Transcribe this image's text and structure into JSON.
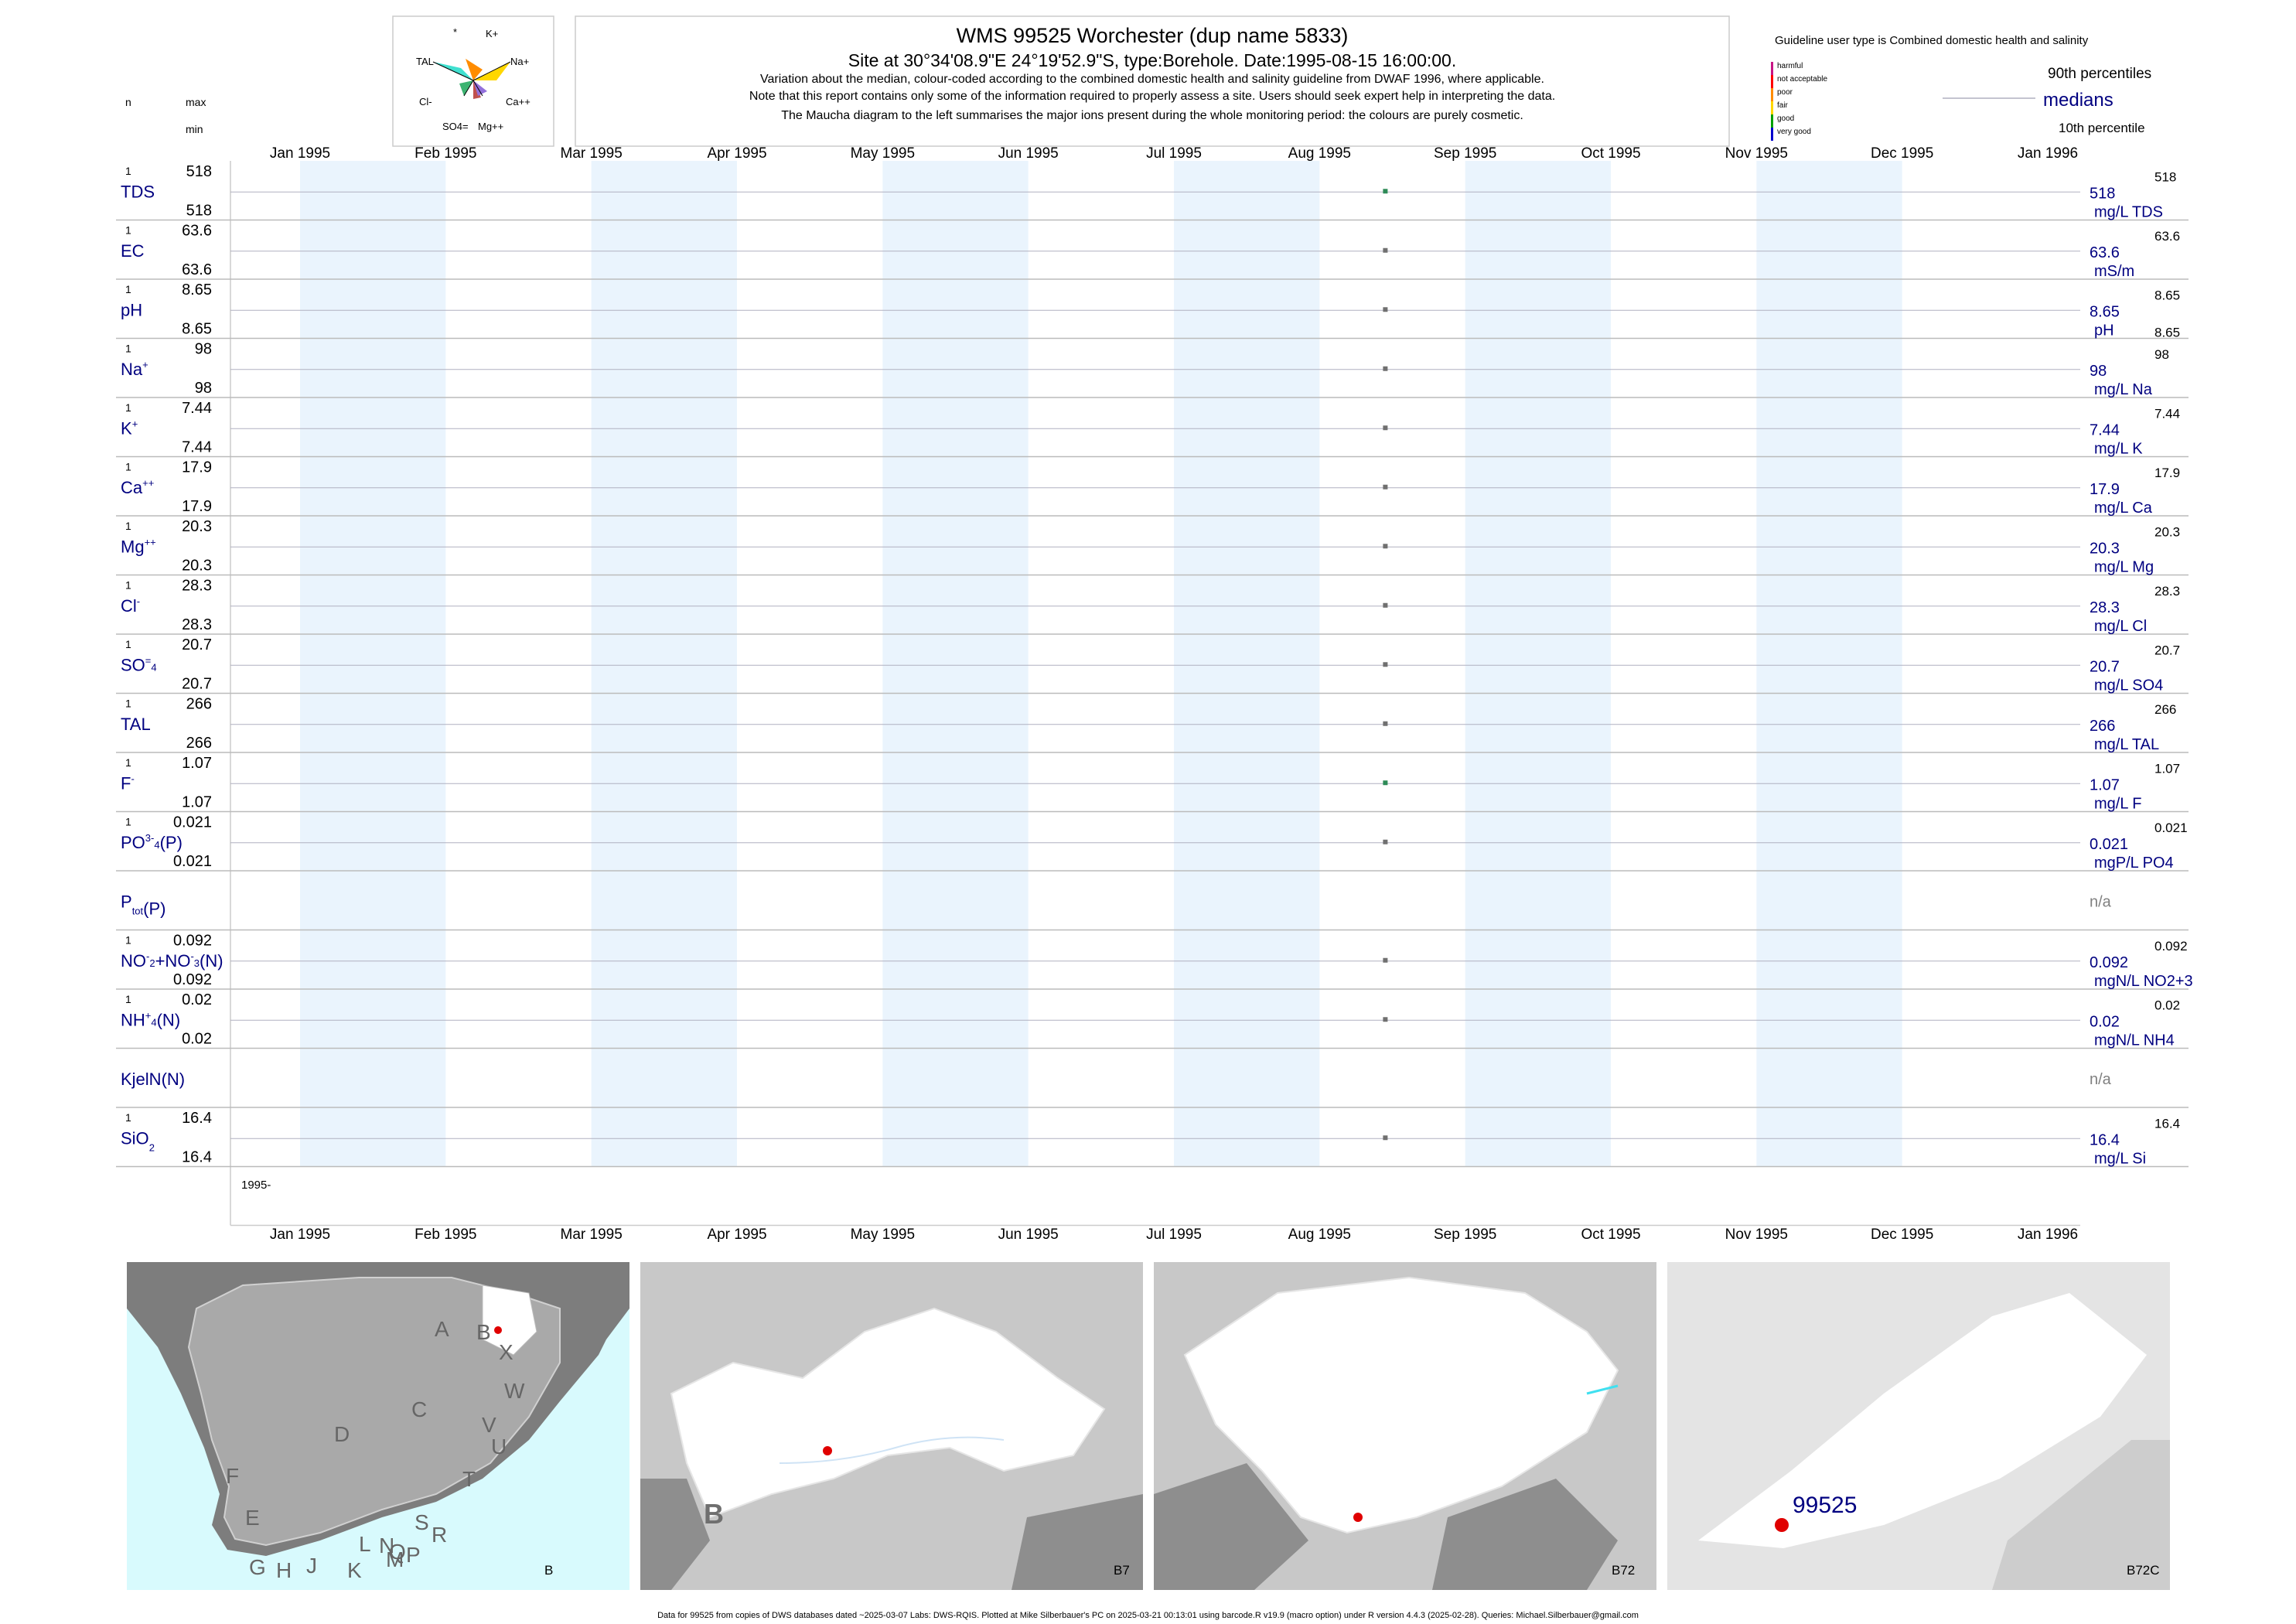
{
  "title": "WMS 99525  Worchester (dup name 5833)",
  "subtitle": "Site at 30°34'08.9\"E 24°19'52.9\"S, type:Borehole. Date:1995-08-15 16:00:00.",
  "notes": [
    "Variation about the median,  colour-coded according to the combined domestic health and salinity guideline from DWAF 1996, where applicable.",
    "Note that this report contains only some of the information required to properly assess a site. Users should seek expert help in interpreting the data.",
    "The Maucha diagram to the left summarises the major ions present during the whole monitoring period: the colours are purely cosmetic."
  ],
  "maucha": {
    "labels": [
      "*",
      "K+",
      "TAL",
      "Na+",
      "Cl-",
      "Ca++",
      "SO4=",
      "Mg++"
    ]
  },
  "header_left": {
    "n": "n",
    "max": "max",
    "min": "min"
  },
  "legend": {
    "guideline_title": "Guideline user type is Combined domestic health and salinity",
    "classes": [
      {
        "label": "harmful",
        "color": "#c71585"
      },
      {
        "label": "not acceptable",
        "color": "#ff0000"
      },
      {
        "label": "poor",
        "color": "#ff8c00"
      },
      {
        "label": "fair",
        "color": "#ffd700"
      },
      {
        "label": "good",
        "color": "#00a000"
      },
      {
        "label": "very good",
        "color": "#0000cd"
      }
    ],
    "p90": "90th percentiles",
    "medians": "medians",
    "p10": "10th percentile"
  },
  "months": [
    "Jan 1995",
    "Feb 1995",
    "Mar 1995",
    "Apr 1995",
    "May 1995",
    "Jun 1995",
    "Jul 1995",
    "Aug 1995",
    "Sep 1995",
    "Oct 1995",
    "Nov 1995",
    "Dec 1995",
    "Jan 1996"
  ],
  "year_label": "1995-",
  "colors": {
    "label_blue": "#000080",
    "band": "#eaf4fd",
    "marker": "#707070",
    "marker_green": "#2e8b57"
  },
  "chart_data": {
    "type": "scatter",
    "sample_date": "1995-08-15",
    "series": [
      {
        "name": "TDS",
        "n": "1",
        "max": "518",
        "min": "518",
        "median": "518",
        "p90": "518",
        "unit": "mg/L TDS",
        "value": 518
      },
      {
        "name": "EC",
        "n": "1",
        "max": "63.6",
        "min": "63.6",
        "median": "63.6",
        "p90": "63.6",
        "unit": "mS/m",
        "value": 63.6
      },
      {
        "name": "pH",
        "n": "1",
        "max": "8.65",
        "min": "8.65",
        "median": "8.65",
        "p90": "8.65",
        "p10": "8.65",
        "unit": "pH",
        "value": 8.65
      },
      {
        "name": "Na+",
        "n": "1",
        "max": "98",
        "min": "98",
        "median": "98",
        "p90": "98",
        "unit": "mg/L Na",
        "value": 98
      },
      {
        "name": "K+",
        "n": "1",
        "max": "7.44",
        "min": "7.44",
        "median": "7.44",
        "p90": "7.44",
        "unit": "mg/L K",
        "value": 7.44
      },
      {
        "name": "Ca++",
        "n": "1",
        "max": "17.9",
        "min": "17.9",
        "median": "17.9",
        "p90": "17.9",
        "unit": "mg/L Ca",
        "value": 17.9
      },
      {
        "name": "Mg++",
        "n": "1",
        "max": "20.3",
        "min": "20.3",
        "median": "20.3",
        "p90": "20.3",
        "unit": "mg/L Mg",
        "value": 20.3
      },
      {
        "name": "Cl-",
        "n": "1",
        "max": "28.3",
        "min": "28.3",
        "median": "28.3",
        "p90": "28.3",
        "unit": "mg/L Cl",
        "value": 28.3
      },
      {
        "name": "SO4=",
        "n": "1",
        "max": "20.7",
        "min": "20.7",
        "median": "20.7",
        "p90": "20.7",
        "unit": "mg/L SO4",
        "value": 20.7
      },
      {
        "name": "TAL",
        "n": "1",
        "max": "266",
        "min": "266",
        "median": "266",
        "p90": "266",
        "unit": "mg/L TAL",
        "value": 266
      },
      {
        "name": "F-",
        "n": "1",
        "max": "1.07",
        "min": "1.07",
        "median": "1.07",
        "p90": "1.07",
        "unit": "mg/L F",
        "value": 1.07
      },
      {
        "name": "PO4 3-(P)",
        "n": "1",
        "max": "0.021",
        "min": "0.021",
        "median": "0.021",
        "p90": "0.021",
        "unit": "mgP/L PO4",
        "value": 0.021
      },
      {
        "name": "Ptot(P)",
        "n": "",
        "max": "",
        "min": "",
        "median": "n/a",
        "p90": "",
        "unit": "",
        "value": null
      },
      {
        "name": "NO2+NO3(N)",
        "n": "1",
        "max": "0.092",
        "min": "0.092",
        "median": "0.092",
        "p90": "0.092",
        "unit": "mgN/L NO2+3",
        "value": 0.092
      },
      {
        "name": "NH4+(N)",
        "n": "1",
        "max": "0.02",
        "min": "0.02",
        "median": "0.02",
        "p90": "0.02",
        "unit": "mgN/L NH4",
        "value": 0.02
      },
      {
        "name": "KjelN(N)",
        "n": "",
        "max": "",
        "min": "",
        "median": "n/a",
        "p90": "",
        "unit": "",
        "value": null
      },
      {
        "name": "SiO2",
        "n": "1",
        "max": "16.4",
        "min": "16.4",
        "median": "16.4",
        "p90": "16.4",
        "unit": "mg/L Si",
        "value": 16.4
      }
    ]
  },
  "maps": {
    "sa_letters": [
      "A",
      "B",
      "X",
      "W",
      "C",
      "V",
      "U",
      "D",
      "T",
      "F",
      "E",
      "S",
      "R",
      "Q",
      "L",
      "N",
      "M",
      "P",
      "G",
      "H",
      "J",
      "K"
    ],
    "panel_labels": [
      "B",
      "B7",
      "B72",
      "B72C"
    ],
    "region_big_letter": "B",
    "site_label": "99525"
  },
  "footer": "Data for 99525 from copies of DWS databases dated ~2025-03-07 Labs: DWS-RQIS. Plotted at Mike Silberbauer's PC on 2025-03-21 00:13:01 using barcode.R v19.9 (macro option) under R version 4.4.3 (2025-02-28). Queries: Michael.Silberbauer@gmail.com"
}
